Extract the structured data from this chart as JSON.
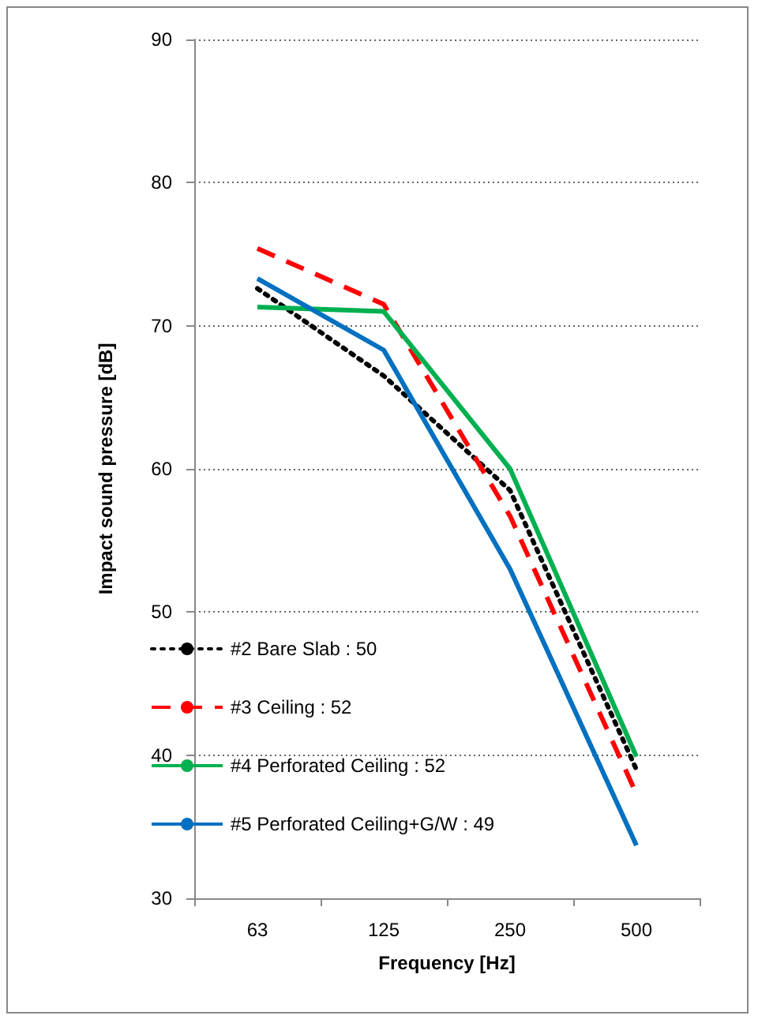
{
  "chart_data": {
    "type": "line",
    "xlabel": "Frequency [Hz]",
    "ylabel": "Impact sound pressure [dB]",
    "categories": [
      "63",
      "125",
      "250",
      "500"
    ],
    "series": [
      {
        "name": "#2 Bare Slab : 50",
        "color": "#000000",
        "line_style": "dotted",
        "values": [
          72.6,
          66.5,
          58.5,
          39.0
        ]
      },
      {
        "name": "#3 Ceiling : 52",
        "color": "#ff0000",
        "line_style": "dashed",
        "values": [
          75.4,
          71.5,
          56.7,
          37.3
        ]
      },
      {
        "name": "#4 Perforated Ceiling : 52",
        "color": "#00b050",
        "line_style": "solid",
        "values": [
          71.3,
          71.0,
          60.0,
          39.9
        ]
      },
      {
        "name": "#5 Perforated Ceiling+G/W : 49",
        "color": "#0070c0",
        "line_style": "solid",
        "values": [
          73.3,
          68.3,
          53.0,
          33.7
        ]
      }
    ],
    "ylim": [
      30,
      90
    ],
    "yticks": [
      30,
      40,
      50,
      60,
      70,
      80,
      90
    ],
    "grid": "y",
    "legend": "bottom left",
    "marker": "none"
  }
}
